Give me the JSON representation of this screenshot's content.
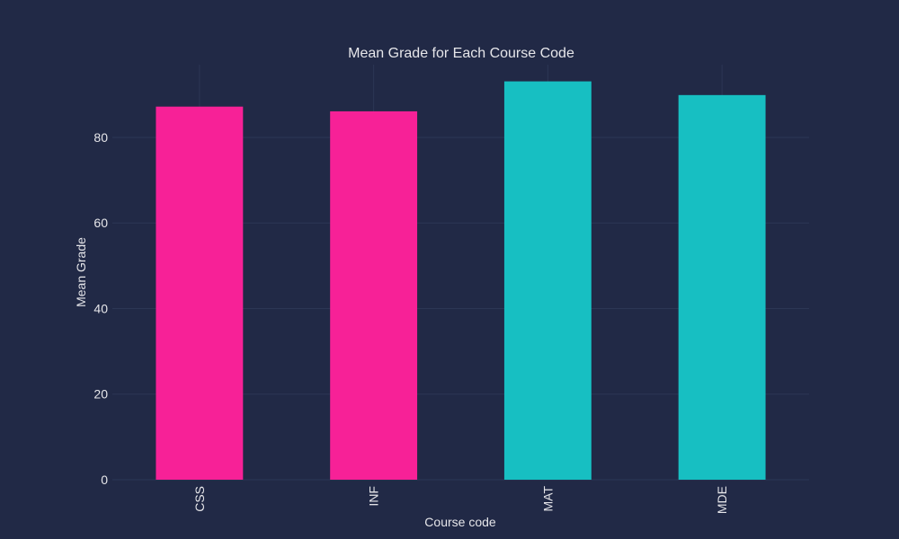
{
  "chart_data": {
    "type": "bar",
    "title": "Mean Grade for Each Course Code",
    "xlabel": "Course code",
    "ylabel": "Mean Grade",
    "categories": [
      "CSS",
      "INF",
      "MAT",
      "MDE"
    ],
    "values": [
      87.2,
      86.1,
      93.1,
      89.9
    ],
    "bar_colors": [
      "#f72197",
      "#f72197",
      "#17bfc2",
      "#17bfc2"
    ],
    "ylim": [
      0,
      97
    ],
    "yticks": [
      0,
      20,
      40,
      60,
      80
    ],
    "grid": true,
    "legend": "none"
  },
  "colors": {
    "background": "#212946",
    "grid": "#2c3655",
    "text": "#e6e6ea"
  }
}
